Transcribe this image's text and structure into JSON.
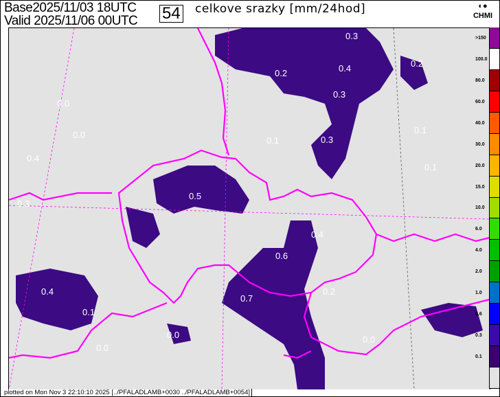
{
  "header": {
    "base_label": "Base",
    "base_time": "2025/11/03 18UTC",
    "valid_label": "Valid",
    "valid_time": "2025/11/06 00UTC",
    "forecast_step": "54",
    "title": "celkove srazky [mm/24hod]",
    "logo_text": "CHMI"
  },
  "legend": {
    "items": [
      {
        "label": ">150",
        "color": "#8c0a96"
      },
      {
        "label": "100.0",
        "color": "#ffffff"
      },
      {
        "label": "80.0",
        "color": "#a00000"
      },
      {
        "label": "60.0",
        "color": "#ff0000"
      },
      {
        "label": "40.0",
        "color": "#ff5a00"
      },
      {
        "label": "30.0",
        "color": "#ff8c00"
      },
      {
        "label": "20.0",
        "color": "#ffb400"
      },
      {
        "label": "15.0",
        "color": "#e0dc00"
      },
      {
        "label": "10.0",
        "color": "#a0dc00"
      },
      {
        "label": "6.0",
        "color": "#32dc00"
      },
      {
        "label": "4.0",
        "color": "#00be00"
      },
      {
        "label": "2.0",
        "color": "#00a000"
      },
      {
        "label": "1.0",
        "color": "#0070c8"
      },
      {
        "label": "0.6",
        "color": "#0000ff"
      },
      {
        "label": "0.3",
        "color": "#3c0aaa"
      },
      {
        "label": "0.1",
        "color": "#3c0070"
      },
      {
        "label": "",
        "color": "#e3e3e3"
      }
    ]
  },
  "map": {
    "border_color": "#ff00ff",
    "precip_color": "#3c0a82",
    "values": [
      "0.3",
      "0.2",
      "0.4",
      "0.3",
      "0.2",
      "0.0",
      "0.0",
      "0.1",
      "0.3",
      "0.1",
      "0.1",
      "0.4",
      "0.5",
      "0.3",
      "0.4",
      "0.6",
      "0.4",
      "0.7",
      "0.2",
      "0.0",
      "0.1",
      "0.0",
      "0.0"
    ]
  },
  "footer": "plotted on Mon Nov  3 22:10:10 2025 [../PFALADLAMB+0030 ../PFALADLAMB+0054]"
}
